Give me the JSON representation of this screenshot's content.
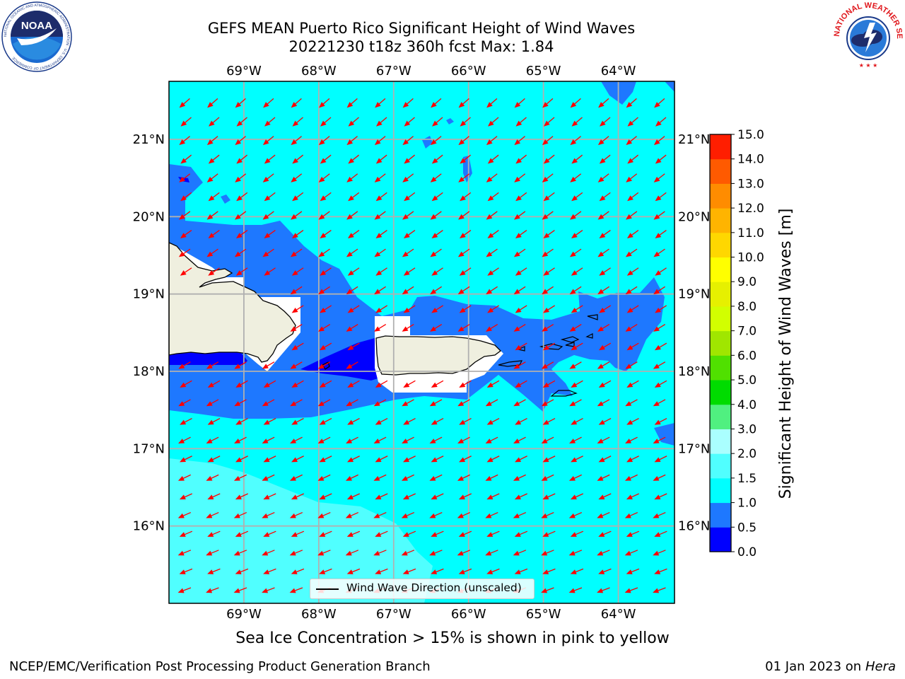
{
  "header": {
    "title_line1": "GEFS MEAN Puerto Rico Significant Height of Wind Waves",
    "title_line2": "20221230 t18z 360h fcst   Max: 1.84"
  },
  "logos": {
    "noaa_text": "NOAA",
    "noaa_ring_text": "NATIONAL OCEANIC AND ATMOSPHERIC ADMINISTRATION · U.S. DEPARTMENT OF COMMERCE",
    "nws_ring_text": "NATIONAL WEATHER SERVICE"
  },
  "map": {
    "lon_labels": [
      "69°W",
      "68°W",
      "67°W",
      "66°W",
      "65°W",
      "64°W"
    ],
    "lat_labels": [
      "21°N",
      "20°N",
      "19°N",
      "18°N",
      "17°N",
      "16°N"
    ],
    "extent": {
      "lon_min": -70.0,
      "lon_max": -63.25,
      "lat_min": 15.0,
      "lat_max": 21.75
    },
    "legend_label": "Wind Wave Direction (unscaled)",
    "field_max": 1.84,
    "regions": [
      {
        "name": "background",
        "range": "1.0-1.5"
      },
      {
        "name": "southwest-band",
        "range": "1.5-2.0"
      },
      {
        "name": "island-lee",
        "range": "0.5-1.0"
      },
      {
        "name": "mona-passage-core",
        "range": "0.0-0.5"
      }
    ]
  },
  "colorbar": {
    "label": "Significant Height of Wind Waves [m]",
    "ticks": [
      "0.0",
      "0.5",
      "1.0",
      "1.5",
      "2.0",
      "3.0",
      "4.0",
      "5.0",
      "6.0",
      "7.0",
      "8.0",
      "9.0",
      "10.0",
      "11.0",
      "12.0",
      "13.0",
      "14.0",
      "15.0"
    ],
    "colors": [
      "#0000ff",
      "#1e78ff",
      "#00ffff",
      "#50ffff",
      "#aaffff",
      "#50f080",
      "#00dc00",
      "#50e000",
      "#a0e600",
      "#d2ff00",
      "#e6f000",
      "#ffff00",
      "#ffd700",
      "#ffb400",
      "#ff8c00",
      "#ff5a00",
      "#ff1e00",
      "#ff0000"
    ]
  },
  "caption": "Sea Ice Concentration > 15% is shown in pink to yellow",
  "footer": {
    "left": "NCEP/EMC/Verification Post Processing Product Generation Branch",
    "right_prefix": "01 Jan 2023 on ",
    "right_host": "Hera"
  }
}
